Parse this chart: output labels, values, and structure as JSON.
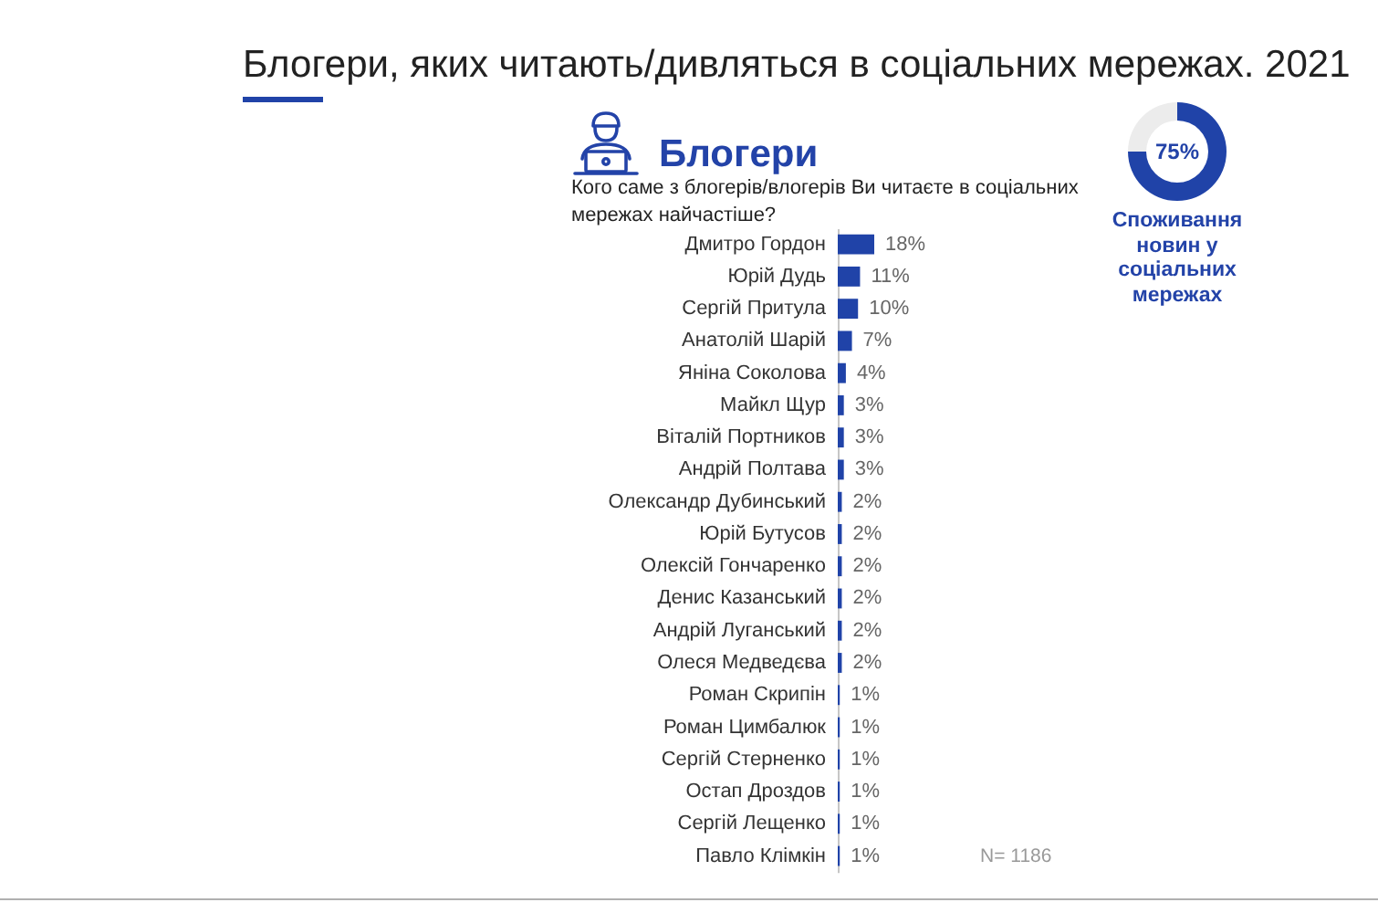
{
  "chart_data": [
    {
      "type": "bar",
      "orientation": "horizontal",
      "title": "Блогери",
      "subtitle": "Кого саме з блогерів/влогерів Ви читаєте в соціальних мережах найчастіше?",
      "annotations": [
        "Блогери, яких читають/дивляться в соціальних мережах. 2021",
        "N= 1186"
      ],
      "categories": [
        "Дмитро Гордон",
        "Юрій Дудь",
        "Сергій Притула",
        "Анатолій Шарій",
        "Яніна Соколова",
        "Майкл Щур",
        "Віталій Портников",
        "Андрій Полтава",
        "Олександр Дубинський",
        "Юрій Бутусов",
        "Олексій Гончаренко",
        "Денис Казанський",
        "Андрій Луганський",
        "Олеся Медведєва",
        "Роман Скрипін",
        "Роман Цимбалюк",
        "Сергій Стерненко",
        "Остап Дроздов",
        "Сергій Лещенко",
        "Павло Клімкін"
      ],
      "values": [
        18,
        11,
        10,
        7,
        4,
        3,
        3,
        3,
        2,
        2,
        2,
        2,
        2,
        2,
        1,
        1,
        1,
        1,
        1,
        1
      ],
      "value_labels": [
        "18%",
        "11%",
        "10%",
        "7%",
        "4%",
        "3%",
        "3%",
        "3%",
        "2%",
        "2%",
        "2%",
        "2%",
        "2%",
        "2%",
        "1%",
        "1%",
        "1%",
        "1%",
        "1%",
        "1%"
      ],
      "color": "#2043a8"
    },
    {
      "type": "donut",
      "title": "Споживання новин у соціальних мережах",
      "annotations": [
        "75%"
      ],
      "categories": [
        null,
        null
      ],
      "values": [
        75,
        25
      ],
      "colors": [
        "#2043a8",
        "#ececec"
      ]
    }
  ]
}
